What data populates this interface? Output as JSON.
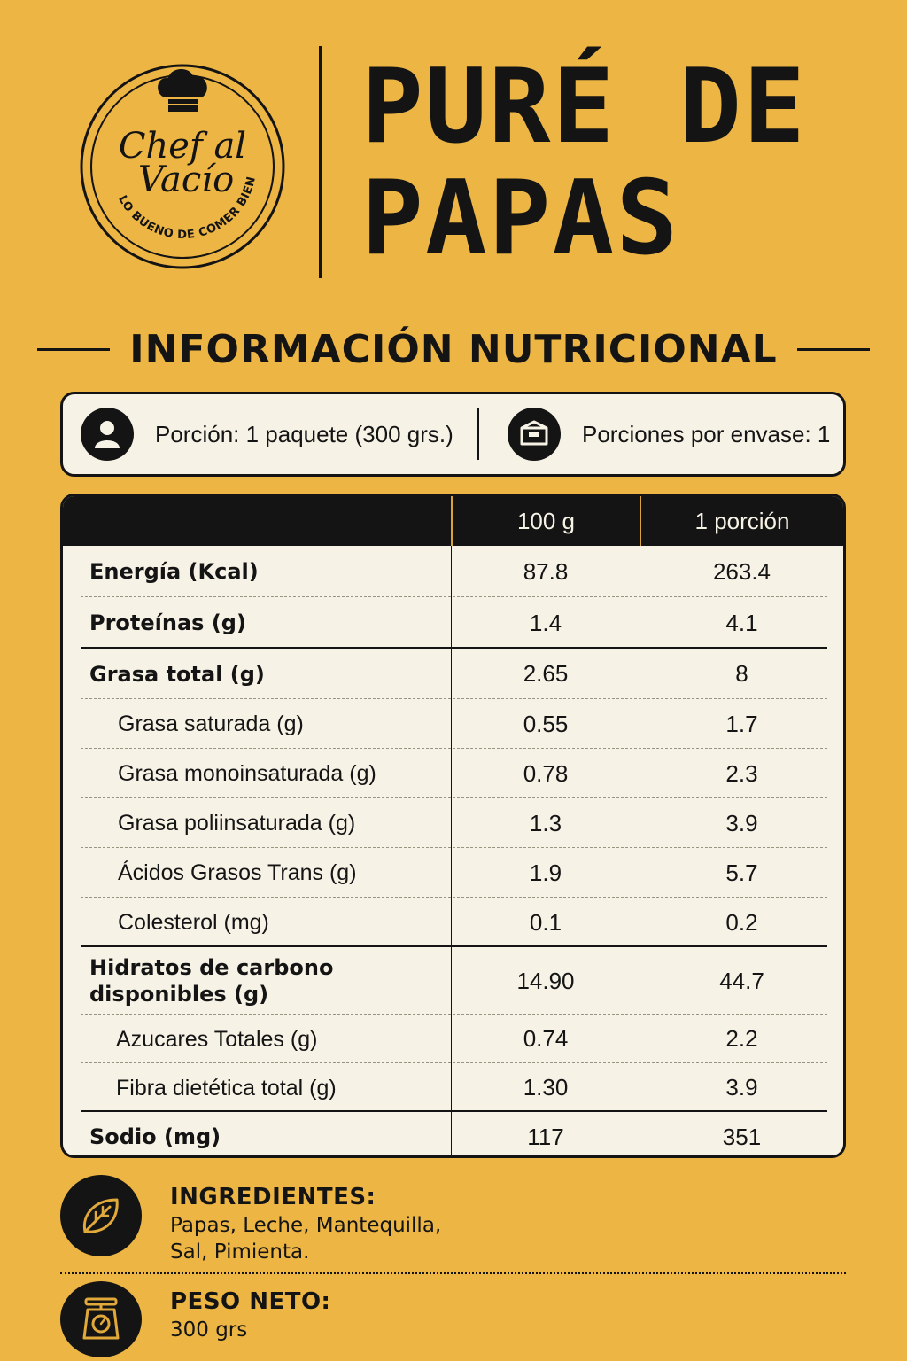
{
  "brand": {
    "logo_script_line1": "Chef al",
    "logo_script_line2": "Vacío",
    "logo_ring_text": "LO BUENO DE COMER BIEN",
    "icon": "chef-hat-icon"
  },
  "product": {
    "title_line1": "PURÉ DE",
    "title_line2": "PAPAS"
  },
  "section": {
    "heading": "INFORMACIÓN NUTRICIONAL"
  },
  "serving": {
    "portion_label": "Porción: 1 paquete (300 grs.)",
    "portions_per_pack": "Porciones por envase: 1",
    "portion_icon": "person-icon",
    "pack_icon": "box-icon"
  },
  "nutrition": {
    "headers": [
      "",
      "100 g",
      "1 porción"
    ],
    "rows": [
      {
        "label": "Energía (Kcal)",
        "per100": "87.8",
        "portion": "263.4"
      },
      {
        "label": "Proteínas (g)",
        "per100": "1.4",
        "portion": "4.1"
      },
      {
        "label": "Grasa total (g)",
        "per100": "2.65",
        "portion": "8"
      },
      {
        "label": "Grasa saturada (g)",
        "per100": "0.55",
        "portion": "1.7"
      },
      {
        "label": "Grasa monoinsaturada (g)",
        "per100": "0.78",
        "portion": "2.3"
      },
      {
        "label": "Grasa poliinsaturada (g)",
        "per100": "1.3",
        "portion": "3.9"
      },
      {
        "label": "Ácidos Grasos Trans (g)",
        "per100": "1.9",
        "portion": "5.7"
      },
      {
        "label": "Colesterol (mg)",
        "per100": "0.1",
        "portion": "0.2"
      },
      {
        "label": "Hidratos de carbono disponibles (g)",
        "per100": "14.90",
        "portion": "44.7"
      },
      {
        "label": "Azucares Totales (g)",
        "per100": "0.74",
        "portion": "2.2"
      },
      {
        "label": "Fibra dietética total (g)",
        "per100": "1.30",
        "portion": "3.9"
      },
      {
        "label": "Sodio (mg)",
        "per100": "117",
        "portion": "351"
      }
    ]
  },
  "ingredients": {
    "title": "INGREDIENTES:",
    "line1": "Papas, Leche, Mantequilla,",
    "line2": "Sal, Pimienta.",
    "icon": "leaf-icon"
  },
  "net_weight": {
    "title": "PESO NETO:",
    "value": "300 grs",
    "icon": "scale-icon"
  },
  "colors": {
    "background": "#EDB544",
    "panel": "#F7F2E6",
    "ink": "#141414"
  }
}
